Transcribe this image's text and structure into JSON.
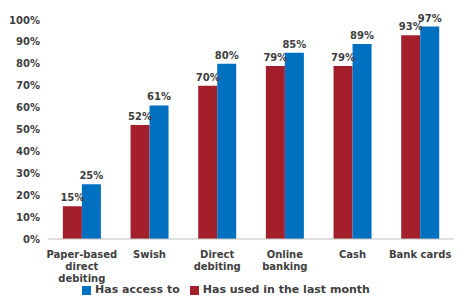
{
  "chart_data": {
    "type": "bar",
    "categories": [
      "Paper-based direct debiting",
      "Swish",
      "Direct debiting",
      "Online banking",
      "Cash",
      "Bank cards"
    ],
    "series": [
      {
        "name": "Has used in the last month",
        "color": "#a31f2b",
        "values": [
          15,
          52,
          70,
          79,
          79,
          93
        ],
        "value_labels": [
          "15%",
          "52%",
          "70%",
          "79%",
          "79%",
          "93%"
        ]
      },
      {
        "name": "Has access to",
        "color": "#0070c0",
        "values": [
          25,
          61,
          80,
          85,
          89,
          97
        ],
        "value_labels": [
          "25%",
          "61%",
          "80%",
          "85%",
          "89%",
          "97%"
        ]
      }
    ],
    "ylim": [
      0,
      100
    ],
    "yticks": [
      {
        "value": 0,
        "label": "0%"
      },
      {
        "value": 10,
        "label": "10%"
      },
      {
        "value": 20,
        "label": "20%"
      },
      {
        "value": 30,
        "label": "30%"
      },
      {
        "value": 40,
        "label": "40%"
      },
      {
        "value": 50,
        "label": "50%"
      },
      {
        "value": 60,
        "label": "60%"
      },
      {
        "value": 70,
        "label": "70%"
      },
      {
        "value": 80,
        "label": "80%"
      },
      {
        "value": 90,
        "label": "90%"
      },
      {
        "value": 100,
        "label": "100%"
      }
    ],
    "grid": false,
    "legend": "bottom",
    "data_labels": true
  }
}
